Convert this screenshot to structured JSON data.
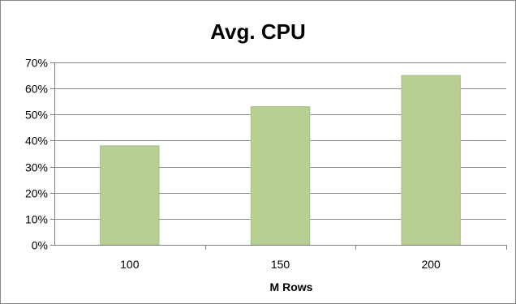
{
  "chart_data": {
    "type": "bar",
    "title": "Avg. CPU",
    "xlabel": "M Rows",
    "ylabel": "",
    "categories": [
      "100",
      "150",
      "200"
    ],
    "values": [
      38,
      53,
      65
    ],
    "value_unit": "%",
    "ylim": [
      0,
      70
    ],
    "ytick_labels": [
      "0%",
      "10%",
      "20%",
      "30%",
      "40%",
      "50%",
      "60%",
      "70%"
    ],
    "ytick_values": [
      0,
      10,
      20,
      30,
      40,
      50,
      60,
      70
    ],
    "grid": "horizontal",
    "legend": "none",
    "bar_color": "#b8cf94",
    "bar_edge_color": "#a6bf80",
    "grid_color": "#8c8c8c",
    "axis_color": "#7f7f7f"
  }
}
